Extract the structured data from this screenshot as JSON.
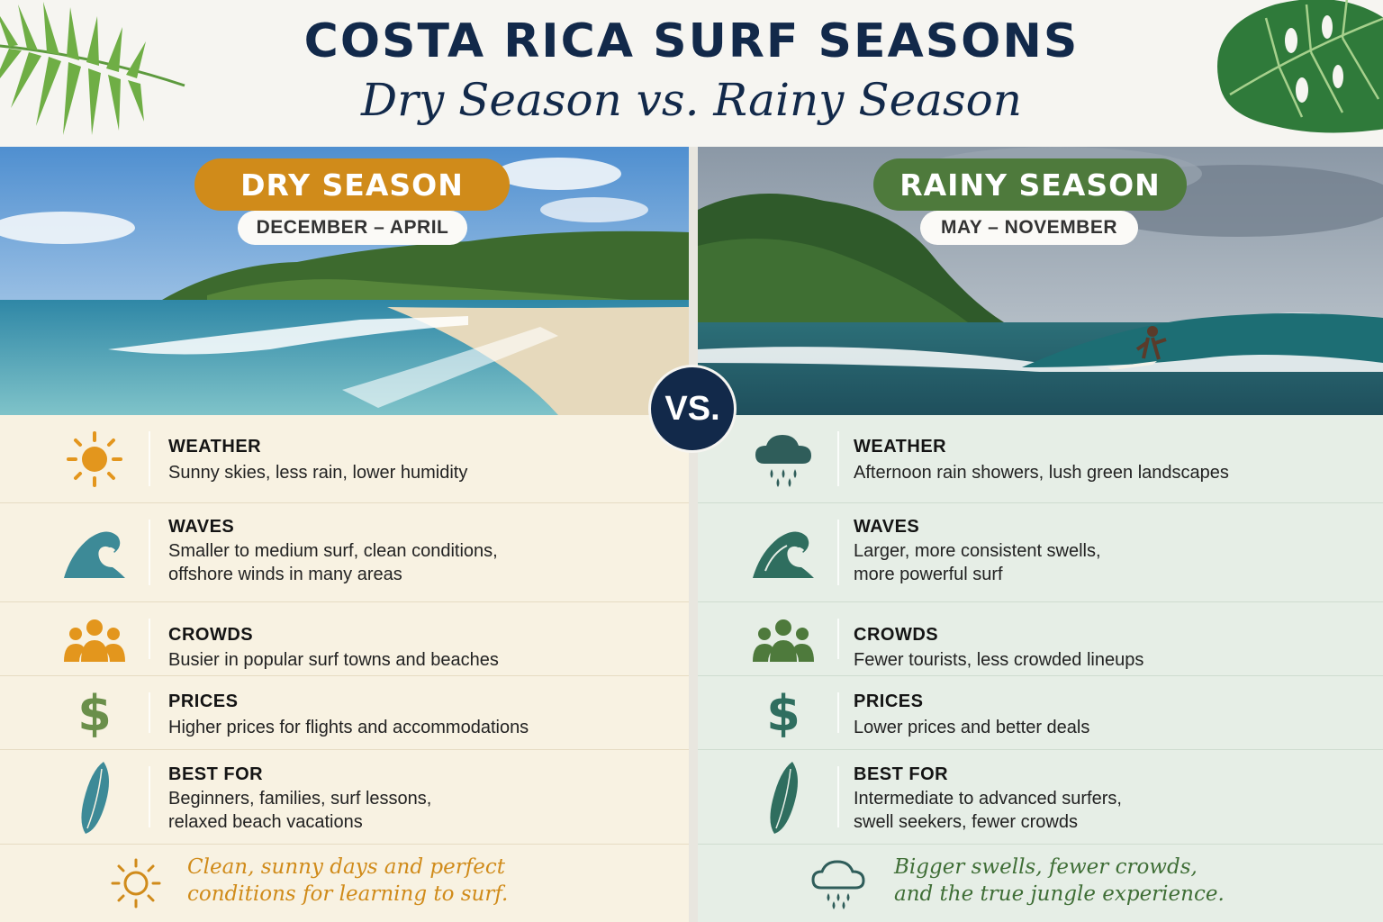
{
  "header": {
    "title": "COSTA RICA SURF SEASONS",
    "subtitle": "Dry Season vs. Rainy Season"
  },
  "vs_label": "VS.",
  "colors": {
    "navy": "#12294a",
    "dry_accent": "#d08b1a",
    "rainy_accent": "#4e7a3c",
    "dry_bg": "#f8f2e2",
    "rainy_bg": "#e6eee6"
  },
  "dry": {
    "name": "DRY SEASON",
    "months": "DECEMBER – APRIL",
    "rows": [
      {
        "icon": "sun-icon",
        "label": "WEATHER",
        "text": "Sunny skies, less rain, lower humidity"
      },
      {
        "icon": "wave-icon",
        "label": "WAVES",
        "text": "Smaller to medium surf, clean conditions,\noffshore winds in many areas"
      },
      {
        "icon": "people-icon",
        "label": "CROWDS",
        "text": "Busier in popular surf towns and beaches"
      },
      {
        "icon": "dollar-icon",
        "label": "PRICES",
        "text": "Higher prices for flights and accommodations"
      },
      {
        "icon": "surfboard-icon",
        "label": "BEST FOR",
        "text": "Beginners, families, surf lessons,\nrelaxed beach vacations"
      }
    ],
    "footer": "Clean, sunny days and perfect\nconditions for learning to surf."
  },
  "rainy": {
    "name": "RAINY SEASON",
    "months": "MAY – NOVEMBER",
    "rows": [
      {
        "icon": "rain-cloud-icon",
        "label": "WEATHER",
        "text": "Afternoon rain showers, lush green landscapes"
      },
      {
        "icon": "wave-icon",
        "label": "WAVES",
        "text": "Larger, more consistent swells,\nmore powerful surf"
      },
      {
        "icon": "people-icon",
        "label": "CROWDS",
        "text": "Fewer tourists, less crowded lineups"
      },
      {
        "icon": "dollar-icon",
        "label": "PRICES",
        "text": "Lower prices and better deals"
      },
      {
        "icon": "surfboard-icon",
        "label": "BEST FOR",
        "text": "Intermediate to advanced surfers,\nswell seekers, fewer crowds"
      }
    ],
    "footer": "Bigger swells, fewer crowds,\nand the true jungle experience."
  }
}
